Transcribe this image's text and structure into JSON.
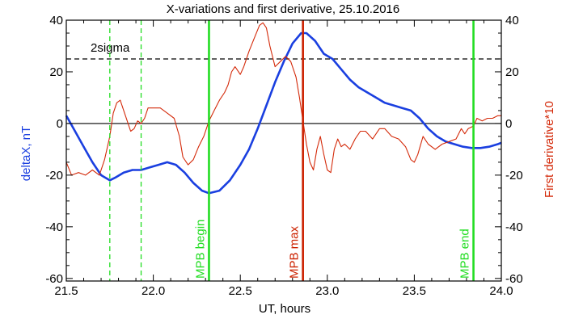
{
  "chart_data": {
    "type": "line",
    "title": "X-variations and first derivative, 25.10.2016",
    "xlabel": "UT, hours",
    "ylabel_left": "deltaX, nT",
    "ylabel_right": "First derivative*10",
    "xlim": [
      21.5,
      24.0
    ],
    "ylim": [
      -61,
      40
    ],
    "x_ticks": [
      21.5,
      22.0,
      22.5,
      23.0,
      23.5,
      24.0
    ],
    "x_tick_labels": [
      "21.5",
      "22.0",
      "22.5",
      "23.0",
      "23.5",
      "24.0"
    ],
    "y_ticks": [
      -60,
      -40,
      -20,
      0,
      20,
      40
    ],
    "y_tick_labels_left": [
      "-60",
      "-40",
      "-20",
      "0",
      "20",
      "40"
    ],
    "y_tick_labels_right": [
      "-60",
      "-40",
      "-20",
      "0",
      "20",
      "40"
    ],
    "colors": {
      "deltaX": "#1a3fe0",
      "derivative": "#d42a0a",
      "mpb_edges": "#22dd22",
      "mpb_max": "#cc2200",
      "reference": "#000000"
    },
    "reference_lines": [
      {
        "label": "2sigma",
        "y": 25,
        "style": "dashed"
      },
      {
        "label": "",
        "y": 0,
        "style": "solid"
      }
    ],
    "vertical_markers": [
      {
        "label": "",
        "x": 21.75,
        "style": "dashed",
        "color": "#22dd22"
      },
      {
        "label": "",
        "x": 21.93,
        "style": "dashed",
        "color": "#22dd22"
      },
      {
        "label": "MPB begin",
        "x": 22.32,
        "style": "solid",
        "color": "#22dd22"
      },
      {
        "label": "MPB max",
        "x": 22.86,
        "style": "solid",
        "color": "#cc2200"
      },
      {
        "label": "MPB end",
        "x": 23.84,
        "style": "solid",
        "color": "#22dd22"
      }
    ],
    "series": [
      {
        "axis": "left",
        "x": [
          21.5,
          21.55,
          21.6,
          21.65,
          21.7,
          21.75,
          21.78,
          21.83,
          21.88,
          21.93,
          21.98,
          22.03,
          22.08,
          22.13,
          22.18,
          22.23,
          22.28,
          22.32,
          22.38,
          22.44,
          22.5,
          22.55,
          22.6,
          22.65,
          22.7,
          22.75,
          22.8,
          22.85,
          22.88,
          22.93,
          22.98,
          23.03,
          23.08,
          23.13,
          23.18,
          23.23,
          23.28,
          23.33,
          23.38,
          23.43,
          23.48,
          23.53,
          23.58,
          23.63,
          23.68,
          23.73,
          23.78,
          23.83,
          23.88,
          23.93,
          23.98,
          24.0
        ],
        "values": [
          3,
          -3,
          -9,
          -15,
          -20,
          -22,
          -21,
          -19,
          -18,
          -18,
          -17,
          -16,
          -15,
          -16,
          -19,
          -23,
          -26,
          -27,
          -26,
          -22,
          -16,
          -10,
          -2,
          7,
          16,
          24,
          31,
          35,
          35,
          32,
          27,
          25,
          21,
          17,
          14,
          12,
          10,
          8,
          7,
          6,
          5,
          2,
          -2,
          -5,
          -7,
          -8,
          -9,
          -9.5,
          -9.5,
          -9,
          -8,
          -7.5
        ]
      },
      {
        "axis": "right",
        "x": [
          21.5,
          21.53,
          21.57,
          21.61,
          21.65,
          21.69,
          21.72,
          21.75,
          21.77,
          21.79,
          21.81,
          21.83,
          21.85,
          21.87,
          21.89,
          21.91,
          21.93,
          21.95,
          21.97,
          22.0,
          22.04,
          22.08,
          22.12,
          22.15,
          22.17,
          22.2,
          22.23,
          22.26,
          22.29,
          22.32,
          22.35,
          22.38,
          22.41,
          22.43,
          22.45,
          22.47,
          22.5,
          22.52,
          22.55,
          22.58,
          22.61,
          22.63,
          22.65,
          22.67,
          22.7,
          22.73,
          22.76,
          22.79,
          22.82,
          22.84,
          22.86,
          22.88,
          22.9,
          22.92,
          22.94,
          22.96,
          22.98,
          23.0,
          23.02,
          23.04,
          23.06,
          23.08,
          23.1,
          23.13,
          23.16,
          23.19,
          23.22,
          23.26,
          23.3,
          23.33,
          23.37,
          23.41,
          23.45,
          23.48,
          23.5,
          23.52,
          23.55,
          23.58,
          23.62,
          23.66,
          23.7,
          23.74,
          23.77,
          23.79,
          23.81,
          23.84,
          23.86,
          23.89,
          23.92,
          23.95,
          23.98,
          24.0
        ],
        "values": [
          -15,
          -20,
          -19,
          -20,
          -18,
          -20,
          -14,
          -5,
          4,
          8,
          9,
          5,
          1,
          -3,
          -2,
          1,
          0,
          2,
          6,
          6,
          6,
          4,
          2,
          -5,
          -13,
          -16,
          -14,
          -9,
          -5,
          1,
          5,
          9,
          12,
          15,
          20,
          22,
          19,
          22,
          28,
          33,
          38,
          39,
          37,
          30,
          22,
          24,
          26,
          24,
          18,
          10,
          1,
          -8,
          -15,
          -18,
          -10,
          -5,
          -12,
          -18,
          -19,
          -10,
          -6,
          -9,
          -8,
          -10,
          -6,
          -3,
          -3,
          -6,
          -2,
          -2,
          -5,
          -6,
          -9,
          -14,
          -15,
          -12,
          -5,
          -8,
          -10,
          -8,
          -7,
          -6,
          -2,
          -4,
          -2,
          -1,
          2,
          1,
          2,
          2,
          3,
          3
        ]
      }
    ]
  }
}
